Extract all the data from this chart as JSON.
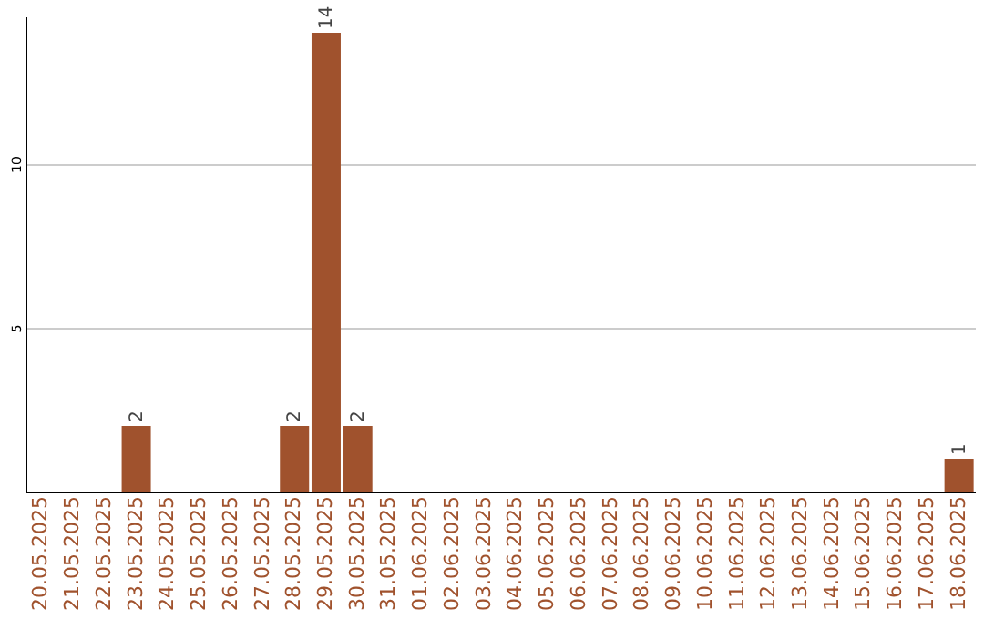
{
  "chart_data": {
    "type": "bar",
    "categories": [
      "20.05.2025",
      "21.05.2025",
      "22.05.2025",
      "23.05.2025",
      "24.05.2025",
      "25.05.2025",
      "26.05.2025",
      "27.05.2025",
      "28.05.2025",
      "29.05.2025",
      "30.05.2025",
      "31.05.2025",
      "01.06.2025",
      "02.06.2025",
      "03.06.2025",
      "04.06.2025",
      "05.06.2025",
      "06.06.2025",
      "07.06.2025",
      "08.06.2025",
      "09.06.2025",
      "10.06.2025",
      "11.06.2025",
      "12.06.2025",
      "13.06.2025",
      "14.06.2025",
      "15.06.2025",
      "16.06.2025",
      "17.06.2025",
      "18.06.2025"
    ],
    "values": [
      0,
      0,
      0,
      2,
      0,
      0,
      0,
      0,
      2,
      14,
      2,
      0,
      0,
      0,
      0,
      0,
      0,
      0,
      0,
      0,
      0,
      0,
      0,
      0,
      0,
      0,
      0,
      0,
      0,
      1
    ],
    "value_labels": [
      null,
      null,
      null,
      "2",
      null,
      null,
      null,
      null,
      "2",
      "14",
      "2",
      null,
      null,
      null,
      null,
      null,
      null,
      null,
      null,
      null,
      null,
      null,
      null,
      null,
      null,
      null,
      null,
      null,
      null,
      "1"
    ],
    "color": "#a0522d",
    "ylim": [
      0,
      14.5
    ],
    "yticks": [
      5,
      10
    ],
    "grid": "y"
  }
}
